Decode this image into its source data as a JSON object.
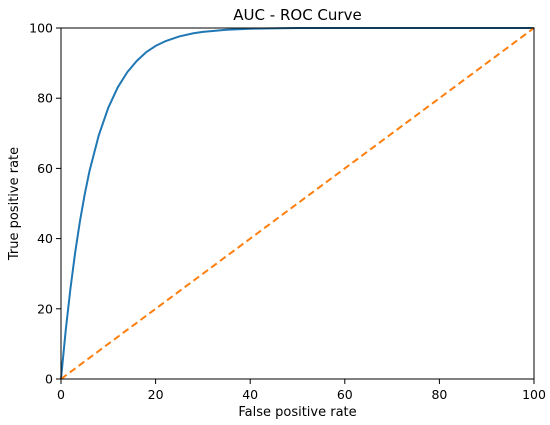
{
  "chart_data": {
    "type": "line",
    "title": "AUC - ROC Curve",
    "xlabel": "False positive rate",
    "ylabel": "True positive rate",
    "xlim": [
      0,
      100
    ],
    "ylim": [
      0,
      100
    ],
    "xticks": [
      0,
      20,
      40,
      60,
      80,
      100
    ],
    "yticks": [
      0,
      20,
      40,
      60,
      80,
      100
    ],
    "grid": false,
    "legend": "none",
    "series": [
      {
        "color": "#1f77b4",
        "line_style": "solid",
        "x": [
          0,
          1,
          2,
          3,
          4,
          5,
          6,
          8,
          10,
          12,
          14,
          16,
          18,
          20,
          22,
          25,
          28,
          30,
          35,
          40,
          50,
          60,
          70,
          80,
          90,
          100
        ],
        "y": [
          0,
          13.9,
          25.8,
          36.1,
          44.9,
          52.5,
          59.1,
          69.5,
          77.3,
          83.1,
          87.4,
          90.6,
          93.1,
          94.9,
          96.2,
          97.6,
          98.5,
          98.9,
          99.5,
          99.8,
          100,
          100,
          100,
          100,
          100,
          100
        ]
      },
      {
        "color": "#ff7f0e",
        "line_style": "dashed",
        "x": [
          0,
          100
        ],
        "y": [
          0,
          100
        ]
      }
    ]
  }
}
